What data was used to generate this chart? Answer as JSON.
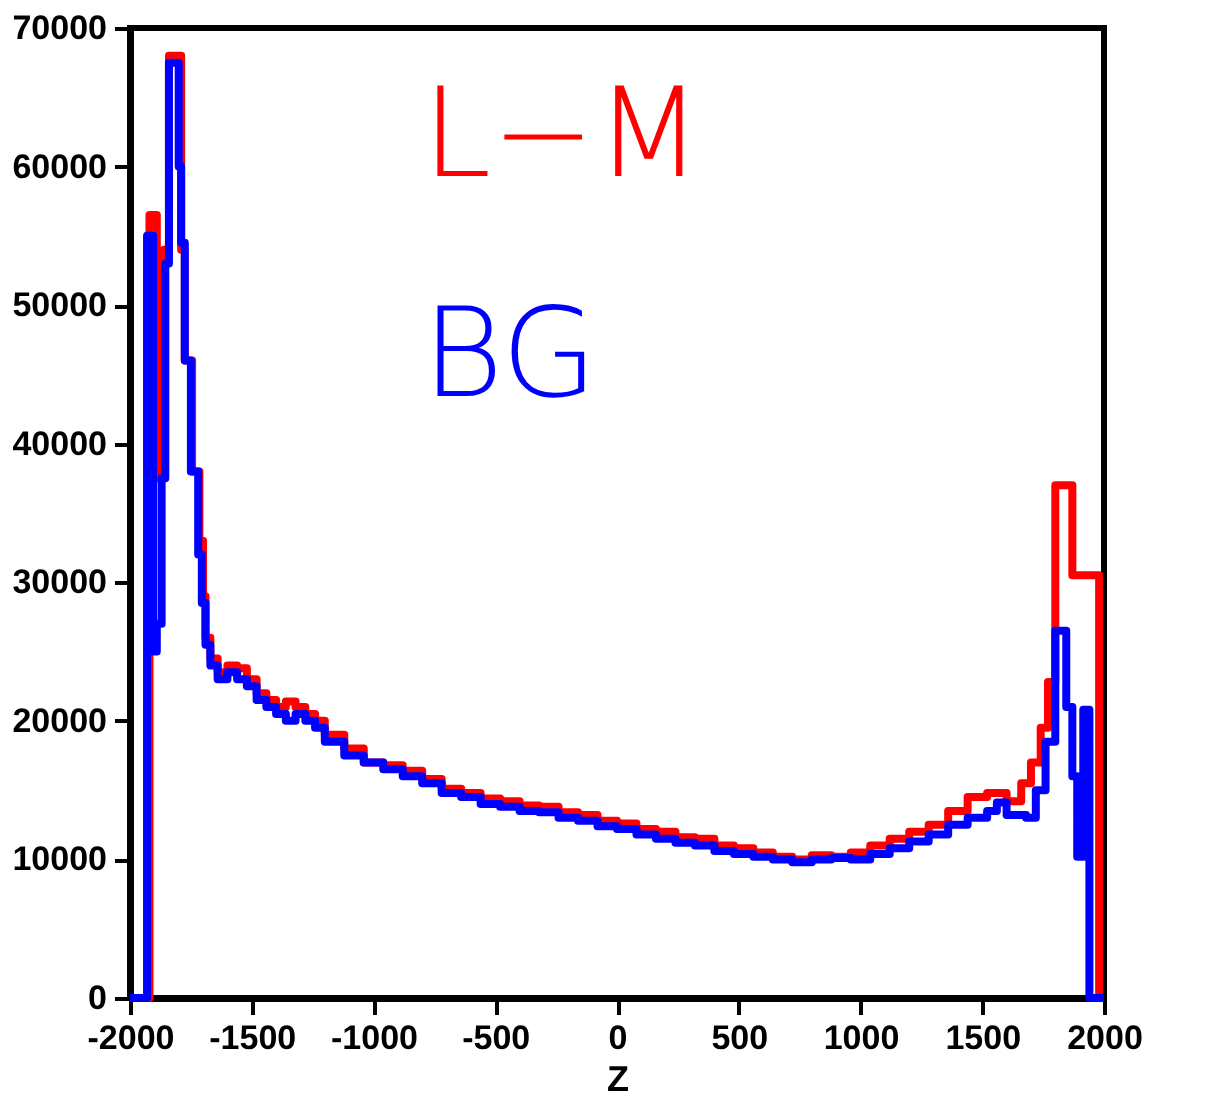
{
  "chart_data": {
    "type": "step",
    "xlabel": "Z",
    "xlim": [
      -2000,
      2000
    ],
    "ylim": [
      0,
      70000
    ],
    "xticks": [
      -2000,
      -1500,
      -1000,
      -500,
      0,
      500,
      1000,
      1500,
      2000
    ],
    "yticks": [
      0,
      10000,
      20000,
      30000,
      40000,
      50000,
      60000,
      70000
    ],
    "grid": false,
    "legend": false,
    "line_style": "solid",
    "marker": "none",
    "series": [
      {
        "name": "L−M",
        "color": "#ff0000",
        "x": [
          -2000,
          -1920,
          -1890,
          -1860,
          -1840,
          -1790,
          -1775,
          -1745,
          -1715,
          -1700,
          -1690,
          -1670,
          -1640,
          -1600,
          -1560,
          -1520,
          -1480,
          -1440,
          -1400,
          -1360,
          -1320,
          -1280,
          -1240,
          -1200,
          -1120,
          -1040,
          -960,
          -880,
          -800,
          -720,
          -640,
          -560,
          -480,
          -400,
          -320,
          -240,
          -160,
          -80,
          0,
          80,
          160,
          240,
          320,
          400,
          480,
          560,
          640,
          720,
          800,
          880,
          960,
          1040,
          1120,
          1200,
          1280,
          1360,
          1440,
          1520,
          1600,
          1660,
          1700,
          1740,
          1770,
          1800,
          1870,
          1980,
          2000
        ],
        "values": [
          0,
          56500,
          37500,
          54000,
          68000,
          54000,
          46000,
          38000,
          33000,
          29000,
          26000,
          24500,
          23500,
          24000,
          23800,
          23000,
          22000,
          21500,
          21000,
          21400,
          21000,
          20500,
          20000,
          19000,
          18000,
          17000,
          16800,
          16400,
          15800,
          15100,
          14800,
          14400,
          14200,
          13900,
          13800,
          13400,
          13200,
          12800,
          12600,
          12200,
          12000,
          11600,
          11500,
          11000,
          10800,
          10500,
          10200,
          10000,
          10300,
          10200,
          10500,
          11000,
          11500,
          12000,
          12500,
          13500,
          14500,
          14800,
          14200,
          15500,
          17000,
          19500,
          22800,
          37000,
          30500,
          0,
          0
        ]
      },
      {
        "name": "BG",
        "color": "#0000ff",
        "x": [
          -2000,
          -1930,
          -1905,
          -1890,
          -1870,
          -1855,
          -1840,
          -1800,
          -1790,
          -1775,
          -1750,
          -1720,
          -1705,
          -1690,
          -1670,
          -1640,
          -1600,
          -1560,
          -1520,
          -1480,
          -1440,
          -1400,
          -1360,
          -1320,
          -1280,
          -1240,
          -1200,
          -1120,
          -1040,
          -960,
          -880,
          -800,
          -720,
          -640,
          -560,
          -480,
          -400,
          -320,
          -240,
          -160,
          -80,
          0,
          80,
          160,
          240,
          320,
          400,
          480,
          560,
          640,
          720,
          800,
          880,
          960,
          1040,
          1120,
          1200,
          1280,
          1360,
          1440,
          1520,
          1560,
          1600,
          1680,
          1720,
          1760,
          1800,
          1845,
          1870,
          1890,
          1915,
          1940,
          2000
        ],
        "values": [
          0,
          55000,
          25000,
          27000,
          37500,
          53000,
          67500,
          60000,
          54500,
          46000,
          38000,
          32000,
          28500,
          25500,
          24000,
          23000,
          23500,
          23000,
          22500,
          21500,
          21000,
          20500,
          20000,
          20500,
          20000,
          19500,
          18500,
          17500,
          17000,
          16500,
          16000,
          15500,
          14800,
          14500,
          14000,
          13800,
          13500,
          13400,
          13000,
          12800,
          12400,
          12200,
          11800,
          11500,
          11200,
          11000,
          10600,
          10400,
          10200,
          10000,
          9800,
          10000,
          10100,
          10000,
          10400,
          10800,
          11300,
          11800,
          12500,
          13000,
          13500,
          14100,
          13200,
          13000,
          15000,
          18500,
          26500,
          21000,
          16000,
          10200,
          20800,
          0,
          0
        ]
      }
    ]
  }
}
